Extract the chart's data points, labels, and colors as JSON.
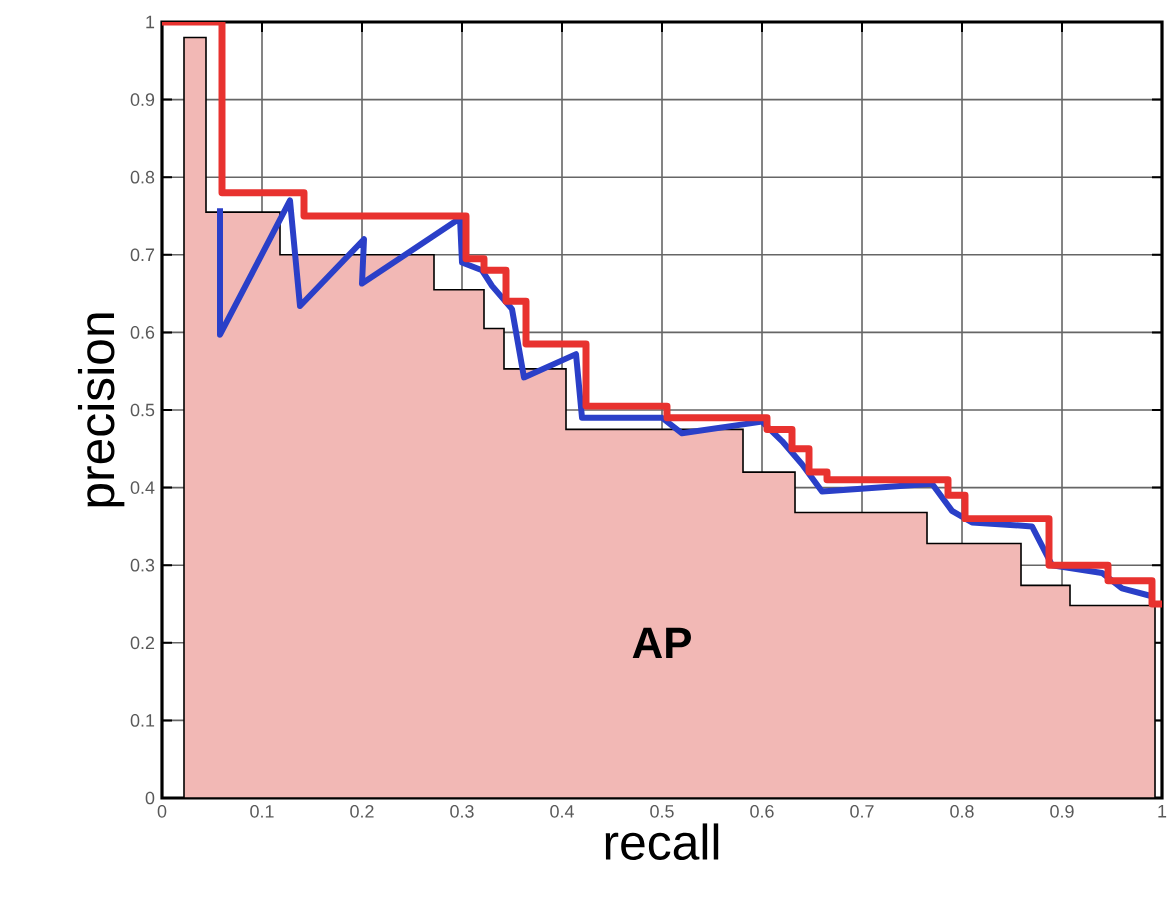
{
  "chart_data": {
    "type": "line",
    "xlabel": "recall",
    "ylabel": "precision",
    "xlim": [
      0,
      1
    ],
    "ylim": [
      0,
      1
    ],
    "xticks": [
      0,
      0.1,
      0.2,
      0.3,
      0.4,
      0.5,
      0.6,
      0.7,
      0.8,
      0.9,
      1
    ],
    "yticks": [
      0,
      0.1,
      0.2,
      0.3,
      0.4,
      0.5,
      0.6,
      0.7,
      0.8,
      0.9,
      1
    ],
    "grid": true,
    "marker": "none",
    "annotations": [
      "AP"
    ],
    "series": [
      {
        "type": "area",
        "color": "#f2b8b5",
        "x": [
          0.022,
          0.022,
          0.044,
          0.044,
          0.118,
          0.118,
          0.272,
          0.272,
          0.322,
          0.322,
          0.342,
          0.342,
          0.404,
          0.404,
          0.581,
          0.581,
          0.633,
          0.633,
          0.765,
          0.765,
          0.859,
          0.859,
          0.908,
          0.908,
          0.993,
          0.993
        ],
        "values": [
          0,
          0.98,
          0.98,
          0.755,
          0.755,
          0.7,
          0.7,
          0.655,
          0.655,
          0.605,
          0.605,
          0.553,
          0.553,
          0.475,
          0.475,
          0.42,
          0.42,
          0.368,
          0.368,
          0.328,
          0.328,
          0.274,
          0.274,
          0.248,
          0.248,
          0
        ]
      },
      {
        "color": "#2a3fc8",
        "x": [
          0.058,
          0.058,
          0.128,
          0.138,
          0.202,
          0.2,
          0.298,
          0.3,
          0.32,
          0.33,
          0.35,
          0.362,
          0.414,
          0.42,
          0.5,
          0.52,
          0.6,
          0.62,
          0.64,
          0.66,
          0.77,
          0.79,
          0.81,
          0.87,
          0.89,
          0.94,
          0.96,
          0.99
        ],
        "values": [
          0.76,
          0.597,
          0.77,
          0.634,
          0.72,
          0.663,
          0.747,
          0.69,
          0.68,
          0.66,
          0.63,
          0.542,
          0.572,
          0.49,
          0.49,
          0.47,
          0.485,
          0.46,
          0.43,
          0.395,
          0.405,
          0.37,
          0.355,
          0.35,
          0.3,
          0.29,
          0.27,
          0.26
        ]
      },
      {
        "type": "step",
        "color": "#e8322f",
        "x": [
          0,
          0.06,
          0.142,
          0.304,
          0.322,
          0.344,
          0.364,
          0.424,
          0.505,
          0.605,
          0.63,
          0.647,
          0.665,
          0.786,
          0.803,
          0.887,
          0.946,
          0.99,
          1
        ],
        "values": [
          1,
          0.78,
          0.75,
          0.695,
          0.68,
          0.64,
          0.585,
          0.505,
          0.49,
          0.475,
          0.45,
          0.42,
          0.41,
          0.39,
          0.36,
          0.3,
          0.28,
          0.25,
          0.25
        ]
      }
    ]
  }
}
